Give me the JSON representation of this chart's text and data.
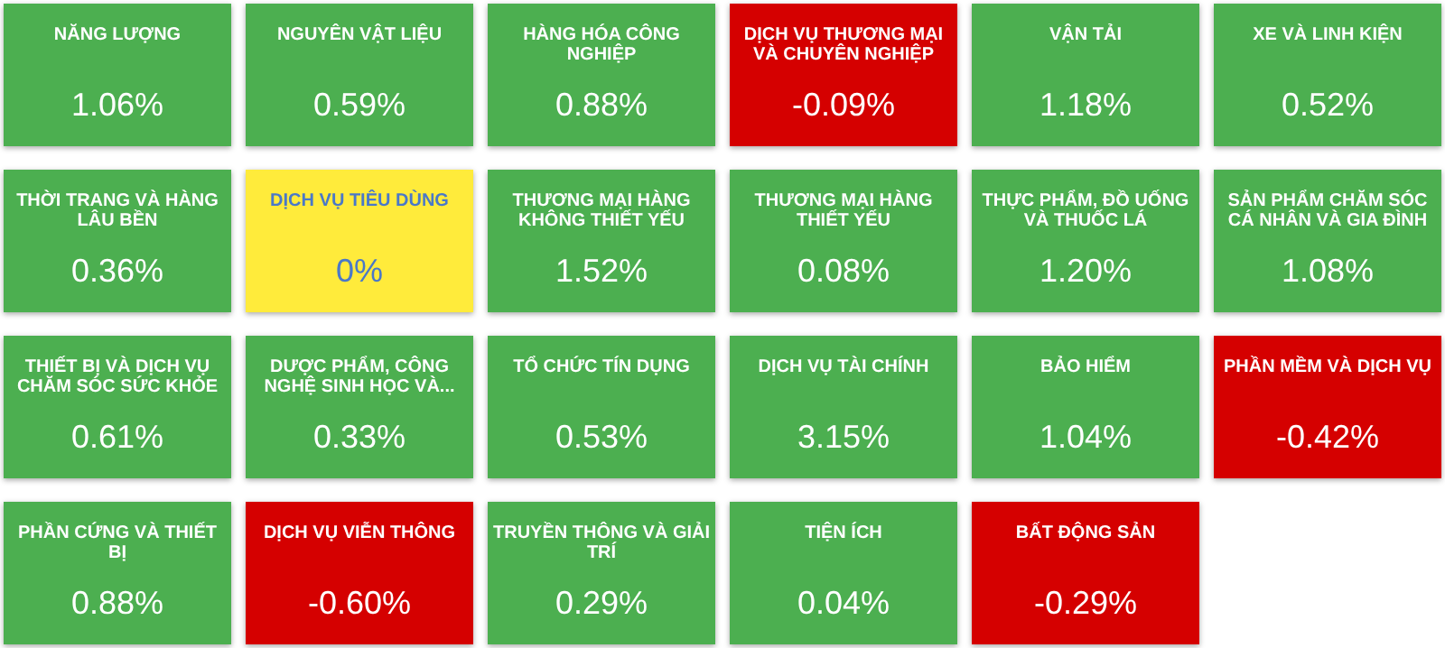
{
  "chart_data": {
    "type": "other",
    "categories": [
      "NĂNG LƯỢNG",
      "NGUYÊN VẬT LIỆU",
      "HÀNG HÓA CÔNG NGHIỆP",
      "DỊCH VỤ THƯƠNG MẠI VÀ CHUYÊN NGHIỆP",
      "VẬN TẢI",
      "XE VÀ LINH KIỆN",
      "THỜI TRANG VÀ HÀNG LÂU BỀN",
      "DỊCH VỤ TIÊU DÙNG",
      "THƯƠNG MẠI HÀNG KHÔNG THIẾT YẾU",
      "THƯƠNG MẠI HÀNG THIẾT YẾU",
      "THỰC PHẨM, ĐỒ UỐNG VÀ THUỐC LÁ",
      "SẢN PHẨM CHĂM SÓC CÁ NHÂN VÀ GIA ĐÌNH",
      "THIẾT BỊ VÀ DỊCH VỤ CHĂM SÓC SỨC KHỎE",
      "DƯỢC PHẨM, CÔNG NGHỆ SINH HỌC VÀ...",
      "TỔ CHỨC TÍN DỤNG",
      "DỊCH VỤ TÀI CHÍNH",
      "BẢO HIỂM",
      "PHẦN MỀM VÀ DỊCH VỤ",
      "PHẦN CỨNG VÀ THIẾT BỊ",
      "DỊCH VỤ VIỄN THÔNG",
      "TRUYỀN THÔNG VÀ GIẢI TRÍ",
      "TIỆN ÍCH",
      "BẤT ĐỘNG SẢN"
    ],
    "values": [
      1.06,
      0.59,
      0.88,
      -0.09,
      1.18,
      0.52,
      0.36,
      0,
      1.52,
      0.08,
      1.2,
      1.08,
      0.61,
      0.33,
      0.53,
      3.15,
      1.04,
      -0.42,
      0.88,
      -0.6,
      0.29,
      0.04,
      -0.29
    ],
    "value_labels": [
      "1.06%",
      "0.59%",
      "0.88%",
      "-0.09%",
      "1.18%",
      "0.52%",
      "0.36%",
      "0%",
      "1.52%",
      "0.08%",
      "1.20%",
      "1.08%",
      "0.61%",
      "0.33%",
      "0.53%",
      "3.15%",
      "1.04%",
      "-0.42%",
      "0.88%",
      "-0.60%",
      "0.29%",
      "0.04%",
      "-0.29%"
    ]
  }
}
